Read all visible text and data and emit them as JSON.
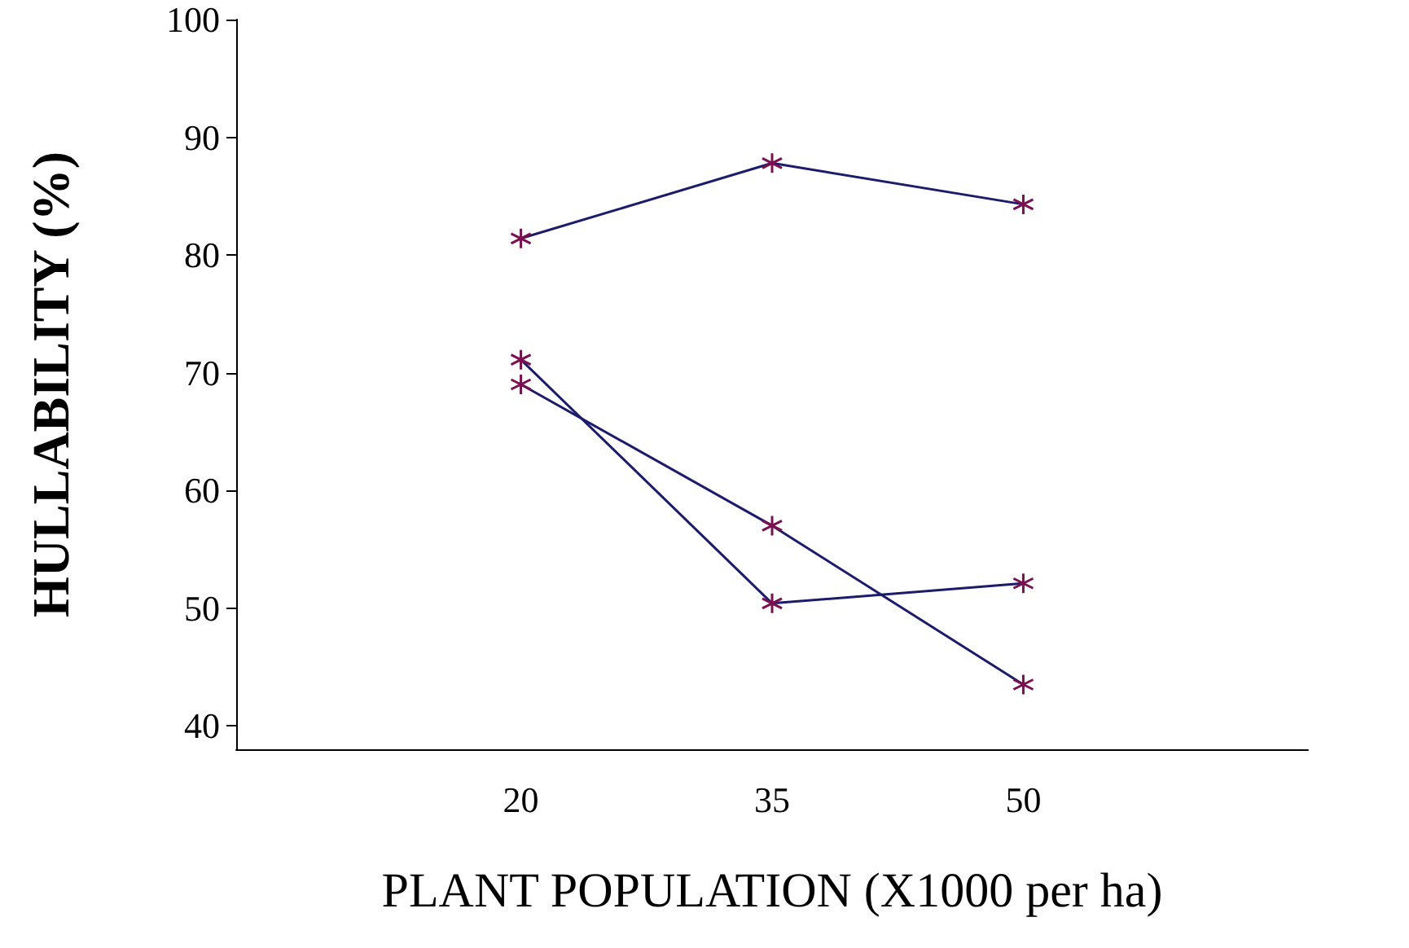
{
  "chart_data": {
    "type": "line",
    "xlabel": "PLANT POPULATION (X1000 per ha)",
    "ylabel": "HULLABILITY (%)",
    "x": [
      20,
      35,
      50
    ],
    "series": [
      {
        "color": "#1c1c6c",
        "values": [
          81.4,
          87.8,
          84.3
        ]
      },
      {
        "color": "#1c1c6c",
        "values": [
          71.1,
          50.4,
          52.1
        ]
      },
      {
        "color": "#1c1c6c",
        "values": [
          69.0,
          57.0,
          43.5
        ]
      }
    ],
    "xlim": [
      3,
      67
    ],
    "xticks": [
      20,
      35,
      50
    ],
    "ylim": [
      38,
      100
    ],
    "yticks": [
      40,
      50,
      60,
      70,
      80,
      90,
      100
    ],
    "grid": false,
    "marker": "cross",
    "line_style": "solid"
  }
}
